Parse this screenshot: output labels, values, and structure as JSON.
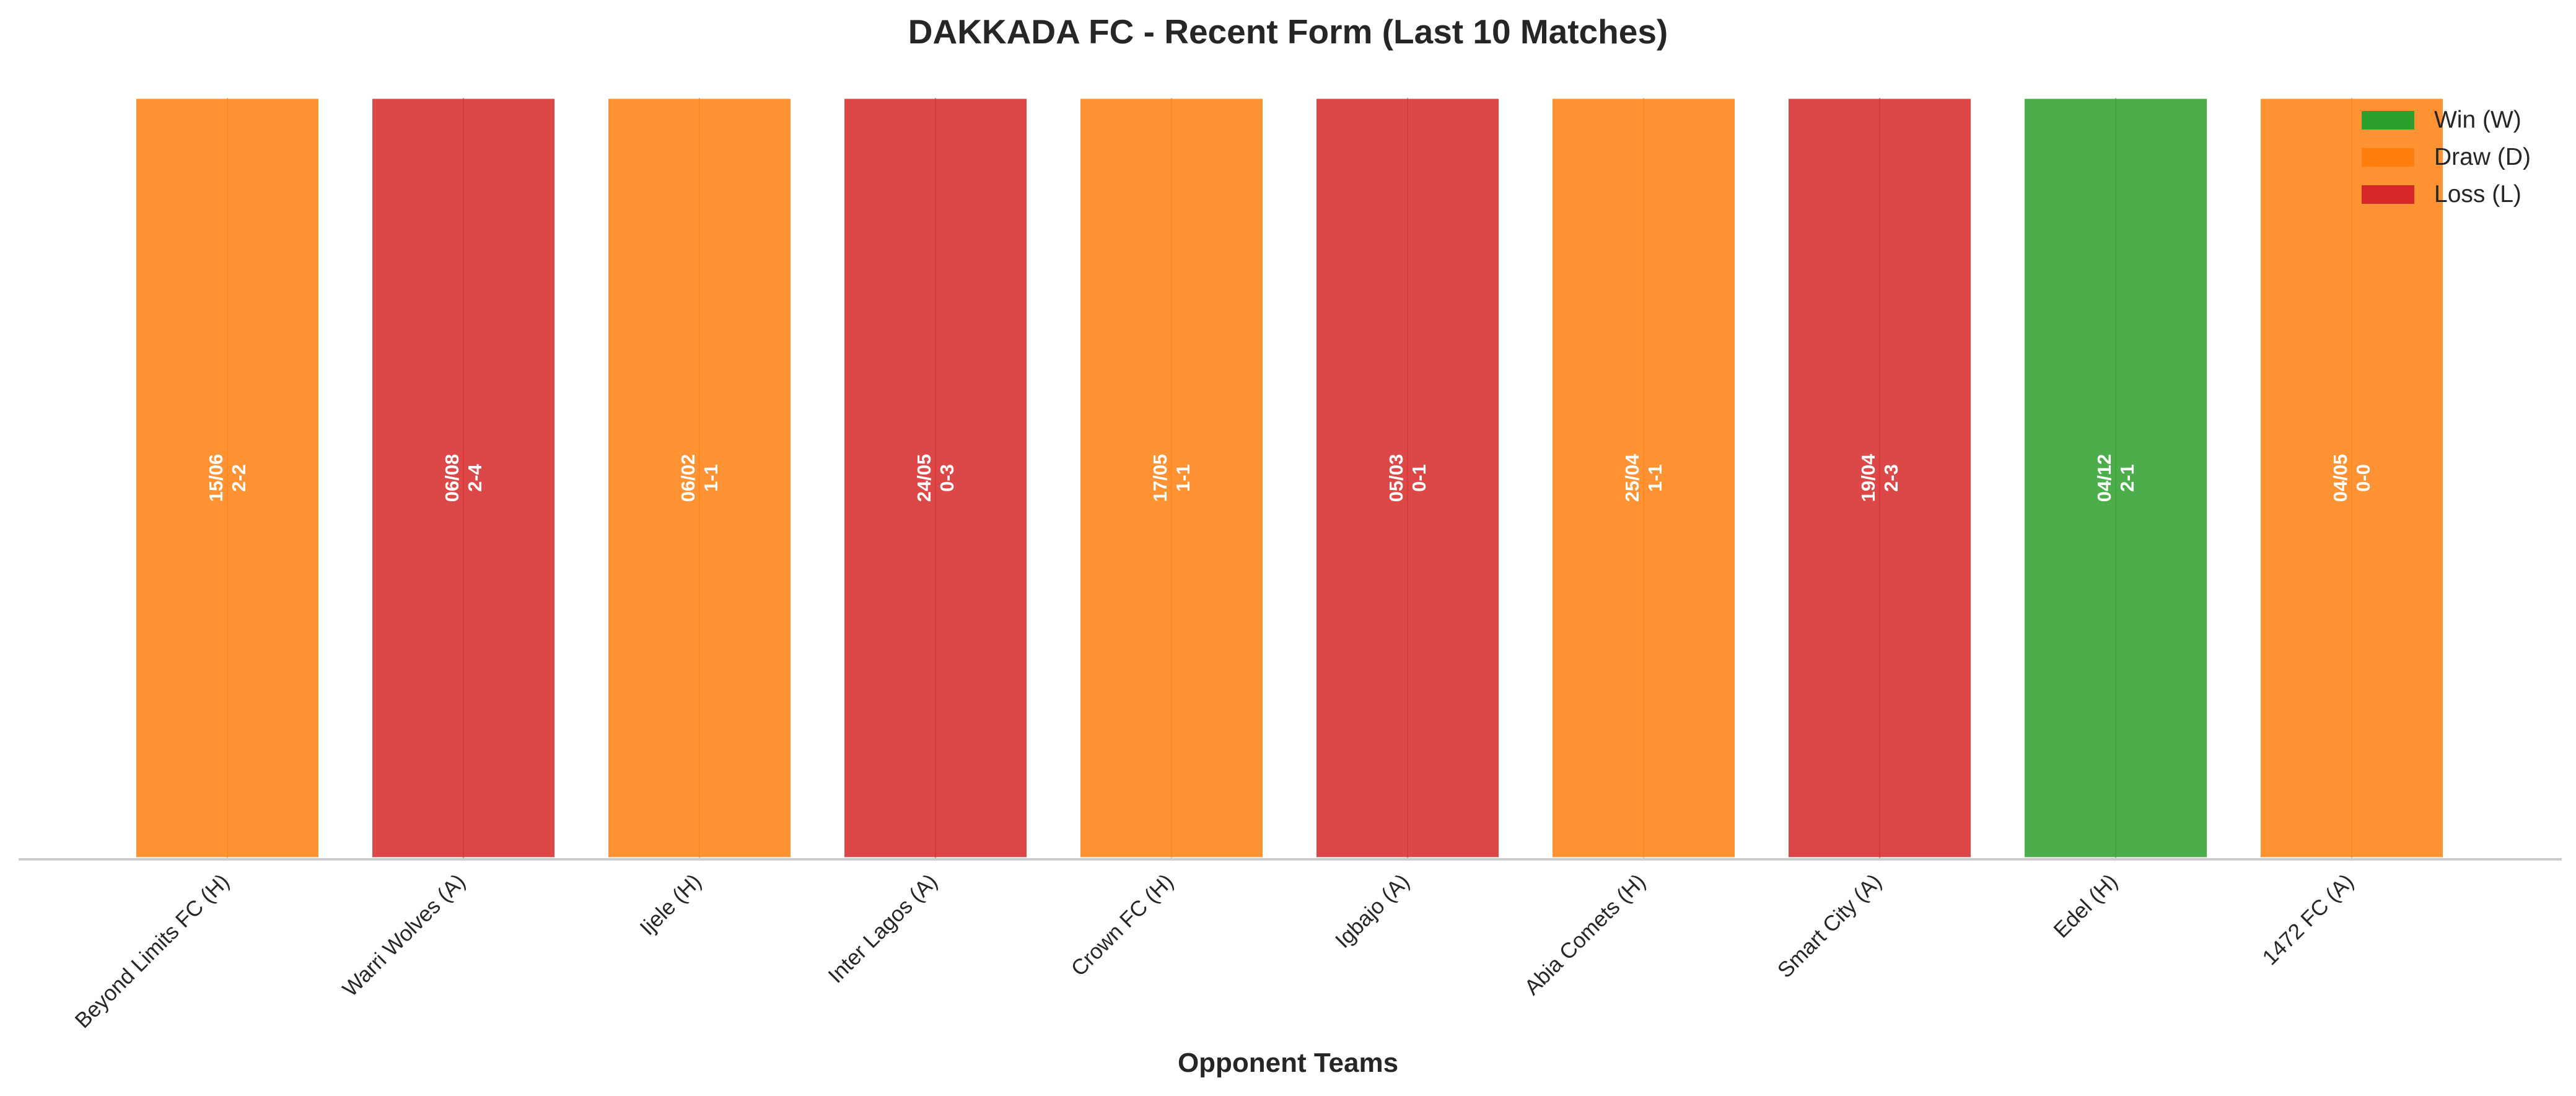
{
  "chart_data": {
    "type": "bar",
    "title": "DAKKADA FC - Recent Form (Last 10 Matches)",
    "xlabel": "Opponent Teams",
    "ylabel": "",
    "categories": [
      "Beyond Limits FC (H)",
      "Warri Wolves (A)",
      "Ijele (H)",
      "Inter Lagos (A)",
      "Crown FC (H)",
      "Igbajo (A)",
      "Abia Comets (H)",
      "Smart City (A)",
      "Edel (H)",
      "1472 FC (A)"
    ],
    "values": [
      1,
      1,
      1,
      1,
      1,
      1,
      1,
      1,
      1,
      1
    ],
    "ylim": [
      0,
      1
    ],
    "grid": false,
    "results": [
      "D",
      "L",
      "D",
      "L",
      "D",
      "L",
      "D",
      "L",
      "W",
      "D"
    ],
    "bar_labels": [
      {
        "date": "15/06",
        "score": "2-2"
      },
      {
        "date": "06/08",
        "score": "2-4"
      },
      {
        "date": "06/02",
        "score": "1-1"
      },
      {
        "date": "24/05",
        "score": "0-3"
      },
      {
        "date": "17/05",
        "score": "1-1"
      },
      {
        "date": "05/03",
        "score": "0-1"
      },
      {
        "date": "25/04",
        "score": "1-1"
      },
      {
        "date": "19/04",
        "score": "2-3"
      },
      {
        "date": "04/12",
        "score": "2-1"
      },
      {
        "date": "04/05",
        "score": "0-0"
      }
    ],
    "legend": {
      "placement": "top-right",
      "entries": [
        {
          "key": "W",
          "label": "Win (W)",
          "color": "#2ca02c"
        },
        {
          "key": "D",
          "label": "Draw (D)",
          "color": "#ff7f0e"
        },
        {
          "key": "L",
          "label": "Loss (L)",
          "color": "#d62728"
        }
      ]
    }
  }
}
